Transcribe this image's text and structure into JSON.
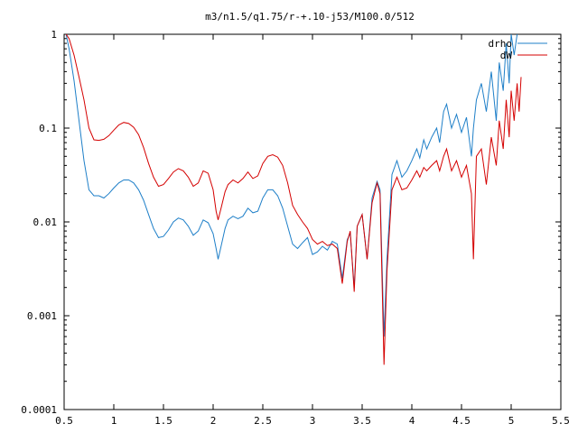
{
  "chart_data": {
    "type": "line",
    "title": "m3/n1.5/q1.75/r-+.10-j53/M100.0/512",
    "xlabel": "",
    "ylabel": "",
    "xlim": [
      0.5,
      5.5
    ],
    "ylim": [
      0.0001,
      1
    ],
    "yscale": "log",
    "grid": false,
    "legend_position": "top-right",
    "x_ticks": [
      {
        "value": 0.5,
        "label": "0.5"
      },
      {
        "value": 1,
        "label": "1"
      },
      {
        "value": 1.5,
        "label": "1.5"
      },
      {
        "value": 2,
        "label": "2"
      },
      {
        "value": 2.5,
        "label": "2.5"
      },
      {
        "value": 3,
        "label": "3"
      },
      {
        "value": 3.5,
        "label": "3.5"
      },
      {
        "value": 4,
        "label": "4"
      },
      {
        "value": 4.5,
        "label": "4.5"
      },
      {
        "value": 5,
        "label": "5"
      },
      {
        "value": 5.5,
        "label": "5.5"
      }
    ],
    "y_ticks": [
      {
        "value": 1,
        "label": "1"
      },
      {
        "value": 0.1,
        "label": "0.1"
      },
      {
        "value": 0.01,
        "label": "0.01"
      },
      {
        "value": 0.001,
        "label": "0.001"
      },
      {
        "value": 0.0001,
        "label": "0.0001"
      }
    ],
    "series": [
      {
        "name": "drho",
        "color": "#1e7fc8",
        "points": [
          [
            0.52,
            1.0
          ],
          [
            0.55,
            0.7
          ],
          [
            0.6,
            0.32
          ],
          [
            0.65,
            0.12
          ],
          [
            0.7,
            0.045
          ],
          [
            0.75,
            0.022
          ],
          [
            0.8,
            0.019
          ],
          [
            0.85,
            0.019
          ],
          [
            0.9,
            0.018
          ],
          [
            0.95,
            0.02
          ],
          [
            1.0,
            0.023
          ],
          [
            1.05,
            0.026
          ],
          [
            1.1,
            0.028
          ],
          [
            1.15,
            0.028
          ],
          [
            1.2,
            0.026
          ],
          [
            1.25,
            0.022
          ],
          [
            1.3,
            0.017
          ],
          [
            1.35,
            0.012
          ],
          [
            1.4,
            0.0085
          ],
          [
            1.45,
            0.0068
          ],
          [
            1.5,
            0.007
          ],
          [
            1.55,
            0.0082
          ],
          [
            1.6,
            0.01
          ],
          [
            1.65,
            0.011
          ],
          [
            1.7,
            0.0105
          ],
          [
            1.75,
            0.009
          ],
          [
            1.8,
            0.0072
          ],
          [
            1.85,
            0.008
          ],
          [
            1.9,
            0.0105
          ],
          [
            1.95,
            0.0098
          ],
          [
            2.0,
            0.0075
          ],
          [
            2.03,
            0.0052
          ],
          [
            2.05,
            0.004
          ],
          [
            2.08,
            0.0055
          ],
          [
            2.12,
            0.0085
          ],
          [
            2.15,
            0.0105
          ],
          [
            2.2,
            0.0115
          ],
          [
            2.25,
            0.0108
          ],
          [
            2.3,
            0.0115
          ],
          [
            2.35,
            0.014
          ],
          [
            2.4,
            0.0125
          ],
          [
            2.45,
            0.013
          ],
          [
            2.5,
            0.018
          ],
          [
            2.55,
            0.022
          ],
          [
            2.6,
            0.022
          ],
          [
            2.65,
            0.019
          ],
          [
            2.7,
            0.014
          ],
          [
            2.75,
            0.009
          ],
          [
            2.8,
            0.0058
          ],
          [
            2.85,
            0.0052
          ],
          [
            2.9,
            0.006
          ],
          [
            2.95,
            0.0068
          ],
          [
            3.0,
            0.0045
          ],
          [
            3.05,
            0.0048
          ],
          [
            3.1,
            0.0055
          ],
          [
            3.15,
            0.005
          ],
          [
            3.2,
            0.0062
          ],
          [
            3.25,
            0.0058
          ],
          [
            3.3,
            0.0025
          ],
          [
            3.35,
            0.0065
          ],
          [
            3.38,
            0.0075
          ],
          [
            3.42,
            0.002
          ],
          [
            3.45,
            0.009
          ],
          [
            3.5,
            0.012
          ],
          [
            3.55,
            0.004
          ],
          [
            3.6,
            0.018
          ],
          [
            3.65,
            0.027
          ],
          [
            3.68,
            0.022
          ],
          [
            3.72,
            0.0006
          ],
          [
            3.75,
            0.004
          ],
          [
            3.8,
            0.032
          ],
          [
            3.85,
            0.045
          ],
          [
            3.9,
            0.03
          ],
          [
            3.95,
            0.035
          ],
          [
            4.0,
            0.045
          ],
          [
            4.05,
            0.06
          ],
          [
            4.08,
            0.048
          ],
          [
            4.12,
            0.075
          ],
          [
            4.15,
            0.06
          ],
          [
            4.2,
            0.08
          ],
          [
            4.25,
            0.1
          ],
          [
            4.28,
            0.07
          ],
          [
            4.32,
            0.15
          ],
          [
            4.35,
            0.18
          ],
          [
            4.4,
            0.1
          ],
          [
            4.45,
            0.14
          ],
          [
            4.5,
            0.09
          ],
          [
            4.55,
            0.13
          ],
          [
            4.6,
            0.05
          ],
          [
            4.62,
            0.1
          ],
          [
            4.65,
            0.2
          ],
          [
            4.7,
            0.3
          ],
          [
            4.75,
            0.15
          ],
          [
            4.8,
            0.4
          ],
          [
            4.85,
            0.12
          ],
          [
            4.88,
            0.5
          ],
          [
            4.92,
            0.25
          ],
          [
            4.95,
            0.8
          ],
          [
            4.98,
            0.3
          ],
          [
            5.0,
            1.0
          ],
          [
            5.03,
            0.6
          ],
          [
            5.06,
            1.0
          ]
        ]
      },
      {
        "name": "dW",
        "color": "#d40000",
        "points": [
          [
            0.52,
            1.0
          ],
          [
            0.55,
            0.9
          ],
          [
            0.6,
            0.6
          ],
          [
            0.65,
            0.35
          ],
          [
            0.7,
            0.2
          ],
          [
            0.75,
            0.1
          ],
          [
            0.8,
            0.075
          ],
          [
            0.85,
            0.074
          ],
          [
            0.9,
            0.076
          ],
          [
            0.95,
            0.083
          ],
          [
            1.0,
            0.095
          ],
          [
            1.05,
            0.108
          ],
          [
            1.1,
            0.115
          ],
          [
            1.15,
            0.112
          ],
          [
            1.2,
            0.102
          ],
          [
            1.25,
            0.085
          ],
          [
            1.3,
            0.062
          ],
          [
            1.35,
            0.042
          ],
          [
            1.4,
            0.03
          ],
          [
            1.45,
            0.024
          ],
          [
            1.5,
            0.025
          ],
          [
            1.55,
            0.029
          ],
          [
            1.6,
            0.034
          ],
          [
            1.65,
            0.037
          ],
          [
            1.7,
            0.035
          ],
          [
            1.75,
            0.03
          ],
          [
            1.8,
            0.024
          ],
          [
            1.85,
            0.026
          ],
          [
            1.9,
            0.035
          ],
          [
            1.95,
            0.033
          ],
          [
            2.0,
            0.022
          ],
          [
            2.03,
            0.013
          ],
          [
            2.05,
            0.0105
          ],
          [
            2.08,
            0.014
          ],
          [
            2.12,
            0.021
          ],
          [
            2.15,
            0.025
          ],
          [
            2.2,
            0.028
          ],
          [
            2.25,
            0.026
          ],
          [
            2.3,
            0.029
          ],
          [
            2.35,
            0.034
          ],
          [
            2.4,
            0.029
          ],
          [
            2.45,
            0.031
          ],
          [
            2.5,
            0.042
          ],
          [
            2.55,
            0.05
          ],
          [
            2.6,
            0.052
          ],
          [
            2.65,
            0.049
          ],
          [
            2.7,
            0.04
          ],
          [
            2.75,
            0.026
          ],
          [
            2.8,
            0.015
          ],
          [
            2.85,
            0.012
          ],
          [
            2.9,
            0.01
          ],
          [
            2.95,
            0.0085
          ],
          [
            3.0,
            0.0065
          ],
          [
            3.05,
            0.0058
          ],
          [
            3.1,
            0.0062
          ],
          [
            3.15,
            0.0056
          ],
          [
            3.2,
            0.0058
          ],
          [
            3.25,
            0.0052
          ],
          [
            3.3,
            0.0022
          ],
          [
            3.35,
            0.0062
          ],
          [
            3.38,
            0.008
          ],
          [
            3.42,
            0.0018
          ],
          [
            3.45,
            0.009
          ],
          [
            3.5,
            0.012
          ],
          [
            3.55,
            0.004
          ],
          [
            3.6,
            0.016
          ],
          [
            3.65,
            0.026
          ],
          [
            3.68,
            0.02
          ],
          [
            3.72,
            0.0003
          ],
          [
            3.75,
            0.003
          ],
          [
            3.8,
            0.022
          ],
          [
            3.85,
            0.03
          ],
          [
            3.9,
            0.022
          ],
          [
            3.95,
            0.023
          ],
          [
            4.0,
            0.028
          ],
          [
            4.05,
            0.035
          ],
          [
            4.08,
            0.03
          ],
          [
            4.12,
            0.038
          ],
          [
            4.15,
            0.035
          ],
          [
            4.2,
            0.04
          ],
          [
            4.25,
            0.045
          ],
          [
            4.28,
            0.035
          ],
          [
            4.32,
            0.05
          ],
          [
            4.35,
            0.06
          ],
          [
            4.4,
            0.035
          ],
          [
            4.45,
            0.045
          ],
          [
            4.5,
            0.03
          ],
          [
            4.55,
            0.04
          ],
          [
            4.6,
            0.02
          ],
          [
            4.62,
            0.004
          ],
          [
            4.65,
            0.05
          ],
          [
            4.7,
            0.06
          ],
          [
            4.75,
            0.025
          ],
          [
            4.8,
            0.08
          ],
          [
            4.85,
            0.04
          ],
          [
            4.88,
            0.12
          ],
          [
            4.92,
            0.06
          ],
          [
            4.95,
            0.2
          ],
          [
            4.98,
            0.08
          ],
          [
            5.0,
            0.25
          ],
          [
            5.03,
            0.12
          ],
          [
            5.06,
            0.3
          ],
          [
            5.08,
            0.15
          ],
          [
            5.1,
            0.35
          ]
        ]
      }
    ]
  }
}
